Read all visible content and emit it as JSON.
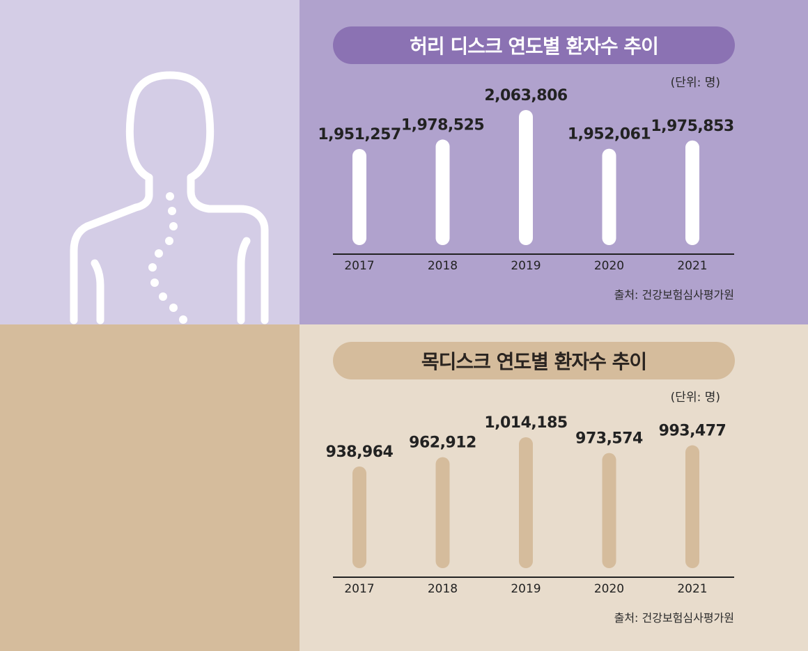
{
  "colors": {
    "purple_light": "#d4cde6",
    "purple_mid": "#b0a2cd",
    "purple_dark": "#8b72b3",
    "tan": "#d5bc9c",
    "beige": "#e8dccc",
    "bar_white": "#ffffff",
    "bar_tan": "#d5bc9c"
  },
  "illustration": {
    "icon": "human-spine-outline-icon"
  },
  "chart_data": [
    {
      "type": "bar",
      "title": "허리 디스크 연도별 환자수 추이",
      "unit": "(단위: 명)",
      "source": "출처: 건강보험심사평가원",
      "categories": [
        "2017",
        "2018",
        "2019",
        "2020",
        "2021"
      ],
      "values": [
        1951257,
        1978525,
        2063806,
        1952061,
        1975853
      ],
      "value_labels": [
        "1,951,257",
        "1,978,525",
        "2,063,806",
        "1,952,061",
        "1,975,853"
      ],
      "xlabel": "",
      "ylabel": "",
      "grid": false
    },
    {
      "type": "bar",
      "title": "목디스크 연도별 환자수 추이",
      "unit": "(단위: 명)",
      "source": "출처: 건강보험심사평가원",
      "categories": [
        "2017",
        "2018",
        "2019",
        "2020",
        "2021"
      ],
      "values": [
        938964,
        962912,
        1014185,
        973574,
        993477
      ],
      "value_labels": [
        "938,964",
        "962,912",
        "1,014,185",
        "973,574",
        "993,477"
      ],
      "xlabel": "",
      "ylabel": "",
      "grid": false
    }
  ]
}
